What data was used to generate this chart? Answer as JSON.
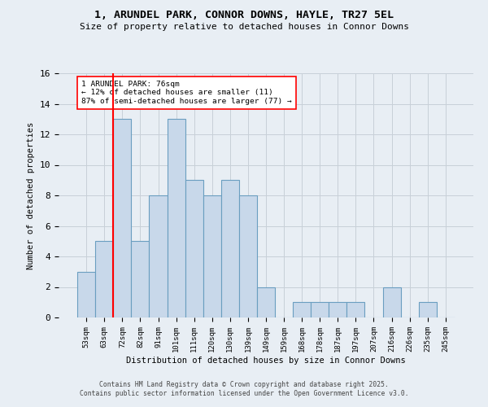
{
  "title_line1": "1, ARUNDEL PARK, CONNOR DOWNS, HAYLE, TR27 5EL",
  "title_line2": "Size of property relative to detached houses in Connor Downs",
  "xlabel": "Distribution of detached houses by size in Connor Downs",
  "ylabel": "Number of detached properties",
  "bar_labels": [
    "53sqm",
    "63sqm",
    "72sqm",
    "82sqm",
    "91sqm",
    "101sqm",
    "111sqm",
    "120sqm",
    "130sqm",
    "139sqm",
    "149sqm",
    "159sqm",
    "168sqm",
    "178sqm",
    "187sqm",
    "197sqm",
    "207sqm",
    "216sqm",
    "226sqm",
    "235sqm",
    "245sqm"
  ],
  "bar_values": [
    3,
    5,
    13,
    5,
    8,
    13,
    9,
    8,
    9,
    8,
    2,
    0,
    1,
    1,
    1,
    1,
    0,
    2,
    0,
    1,
    0
  ],
  "bar_color": "#c8d8ea",
  "bar_edgecolor": "#6a9ec0",
  "red_line_index": 2,
  "ylim": [
    0,
    16
  ],
  "yticks": [
    0,
    2,
    4,
    6,
    8,
    10,
    12,
    14,
    16
  ],
  "annotation_text": "1 ARUNDEL PARK: 76sqm\n← 12% of detached houses are smaller (11)\n87% of semi-detached houses are larger (77) →",
  "footer_line1": "Contains HM Land Registry data © Crown copyright and database right 2025.",
  "footer_line2": "Contains public sector information licensed under the Open Government Licence v3.0.",
  "background_color": "#e8eef4",
  "plot_background": "#e8eef4",
  "grid_color": "#c8d0d8"
}
